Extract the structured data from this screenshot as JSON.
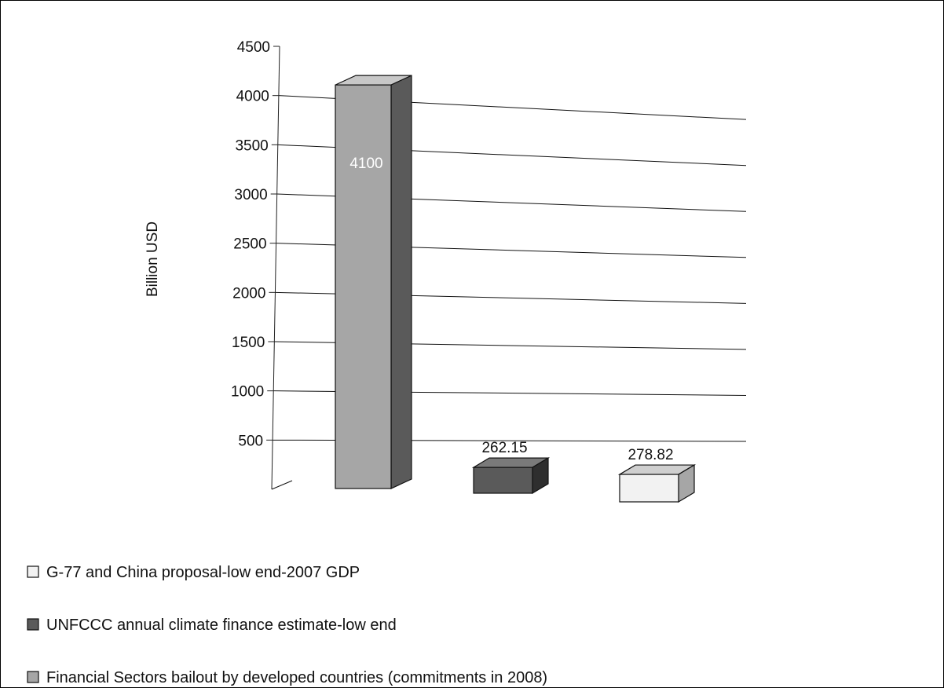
{
  "chart_data": {
    "type": "bar",
    "title": "",
    "xlabel": "",
    "ylabel": "Billion USD",
    "ylim": [
      0,
      4500
    ],
    "yticks": [
      500,
      1000,
      1500,
      2000,
      2500,
      3000,
      3500,
      4000,
      4500
    ],
    "grid": true,
    "legend_position": "bottom-left",
    "series": [
      {
        "name": "Financial Sectors bailout by developed countries (commitments in 2008)",
        "value": 4100,
        "label": "4100",
        "color": "#a6a6a6",
        "side_color": "#5a5a5a",
        "top_color": "#c8c8c8"
      },
      {
        "name": "UNFCCC annual climate finance estimate-low end",
        "value": 262.15,
        "label": "262.15",
        "color": "#5a5a5a",
        "side_color": "#2e2e2e",
        "top_color": "#7a7a7a"
      },
      {
        "name": "G-77 and China proposal-low end-2007 GDP",
        "value": 278.82,
        "label": "278.82",
        "color": "#f2f2f2",
        "side_color": "#a6a6a6",
        "top_color": "#cfcfcf"
      }
    ],
    "legend_order": [
      2,
      1,
      0
    ]
  }
}
